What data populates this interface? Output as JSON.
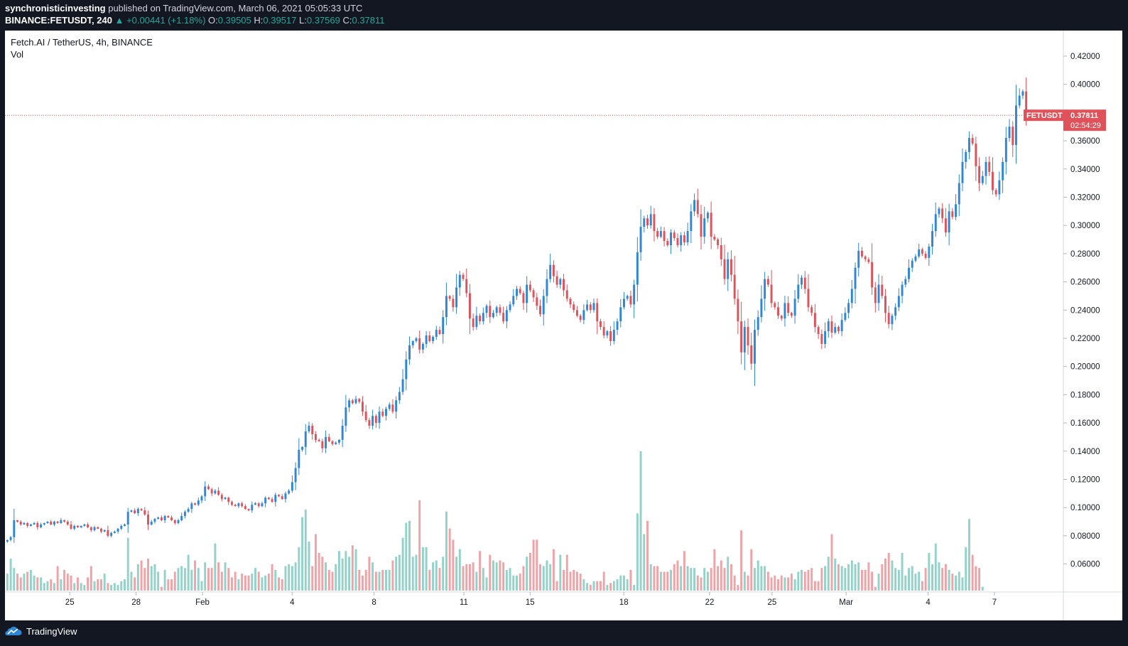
{
  "header": {
    "publisher": "synchronisticinvesting",
    "published_text": "published on TradingView.com, March 06, 2021 05:05:33 UTC",
    "symbol_full": "BINANCE:FETUSDT, 240",
    "change_arrow": "▲",
    "change": "+0.00441 (+1.18%)",
    "open_label": "O:",
    "open": "0.39505",
    "high_label": "H:",
    "high": "0.39517",
    "low_label": "L:",
    "low": "0.37569",
    "close_label": "C:",
    "close": "0.37811"
  },
  "legend": {
    "symbol": "Fetch.AI / TetherUS, 4h, BINANCE",
    "volume": "Vol"
  },
  "footer": {
    "brand": "TradingView"
  },
  "price_tag": {
    "ticker": "FETUSDT",
    "price": "0.37811",
    "countdown": "02:54:29"
  },
  "colors": {
    "up": "#2f86d6",
    "down": "#e0525a",
    "volume_up": "#93d2c9",
    "volume_down": "#f0a3a7",
    "price_line": "#e0525a",
    "background": "#131722"
  },
  "chart_data": {
    "type": "candlestick",
    "timeframe": "4h",
    "y_axis_ticks": [
      "0.42000",
      "0.40000",
      "0.36000",
      "0.34000",
      "0.32000",
      "0.30000",
      "0.28000",
      "0.26000",
      "0.24000",
      "0.22000",
      "0.20000",
      "0.18000",
      "0.16000",
      "0.14000",
      "0.12000",
      "0.10000",
      "0.08000",
      "0.06000"
    ],
    "ylim": [
      0.045,
      0.43
    ],
    "x_axis_ticks": [
      "25",
      "28",
      "Feb",
      "4",
      "8",
      "11",
      "15",
      "18",
      "22",
      "25",
      "Mar",
      "4",
      "7"
    ],
    "last_price": 0.37811,
    "series": [
      {
        "name": "close",
        "values": [
          0.077,
          0.079,
          0.091,
          0.09,
          0.088,
          0.089,
          0.087,
          0.088,
          0.089,
          0.086,
          0.088,
          0.089,
          0.09,
          0.088,
          0.09,
          0.089,
          0.091,
          0.09,
          0.088,
          0.085,
          0.087,
          0.086,
          0.087,
          0.088,
          0.086,
          0.084,
          0.086,
          0.085,
          0.083,
          0.084,
          0.08,
          0.082,
          0.083,
          0.085,
          0.087,
          0.088,
          0.097,
          0.098,
          0.096,
          0.099,
          0.098,
          0.095,
          0.088,
          0.09,
          0.092,
          0.093,
          0.091,
          0.094,
          0.093,
          0.091,
          0.089,
          0.091,
          0.094,
          0.097,
          0.099,
          0.103,
          0.102,
          0.105,
          0.108,
          0.115,
          0.113,
          0.11,
          0.112,
          0.109,
          0.106,
          0.107,
          0.104,
          0.102,
          0.101,
          0.103,
          0.101,
          0.099,
          0.098,
          0.102,
          0.103,
          0.101,
          0.103,
          0.107,
          0.106,
          0.104,
          0.109,
          0.108,
          0.106,
          0.11,
          0.112,
          0.118,
          0.128,
          0.141,
          0.143,
          0.154,
          0.158,
          0.152,
          0.148,
          0.147,
          0.142,
          0.15,
          0.147,
          0.145,
          0.146,
          0.148,
          0.158,
          0.171,
          0.176,
          0.174,
          0.177,
          0.175,
          0.168,
          0.162,
          0.158,
          0.165,
          0.16,
          0.168,
          0.165,
          0.17,
          0.173,
          0.168,
          0.176,
          0.182,
          0.191,
          0.205,
          0.215,
          0.218,
          0.22,
          0.212,
          0.216,
          0.222,
          0.218,
          0.221,
          0.226,
          0.223,
          0.235,
          0.25,
          0.248,
          0.242,
          0.256,
          0.265,
          0.262,
          0.252,
          0.234,
          0.228,
          0.236,
          0.232,
          0.238,
          0.243,
          0.235,
          0.238,
          0.242,
          0.238,
          0.232,
          0.24,
          0.244,
          0.25,
          0.255,
          0.252,
          0.245,
          0.258,
          0.254,
          0.249,
          0.243,
          0.237,
          0.25,
          0.262,
          0.272,
          0.264,
          0.258,
          0.262,
          0.254,
          0.248,
          0.244,
          0.24,
          0.236,
          0.233,
          0.24,
          0.244,
          0.24,
          0.245,
          0.232,
          0.228,
          0.222,
          0.225,
          0.218,
          0.226,
          0.232,
          0.242,
          0.248,
          0.25,
          0.244,
          0.258,
          0.281,
          0.299,
          0.305,
          0.3,
          0.308,
          0.296,
          0.292,
          0.296,
          0.289,
          0.286,
          0.295,
          0.291,
          0.286,
          0.293,
          0.288,
          0.296,
          0.31,
          0.318,
          0.308,
          0.292,
          0.305,
          0.309,
          0.292,
          0.29,
          0.286,
          0.276,
          0.262,
          0.276,
          0.265,
          0.248,
          0.232,
          0.21,
          0.228,
          0.215,
          0.202,
          0.226,
          0.235,
          0.248,
          0.262,
          0.258,
          0.245,
          0.242,
          0.236,
          0.234,
          0.245,
          0.238,
          0.236,
          0.248,
          0.258,
          0.263,
          0.255,
          0.242,
          0.238,
          0.228,
          0.223,
          0.216,
          0.225,
          0.232,
          0.224,
          0.228,
          0.225,
          0.233,
          0.238,
          0.245,
          0.255,
          0.27,
          0.282,
          0.278,
          0.276,
          0.274,
          0.256,
          0.245,
          0.258,
          0.25,
          0.238,
          0.23,
          0.236,
          0.242,
          0.25,
          0.258,
          0.262,
          0.27,
          0.275,
          0.278,
          0.283,
          0.28,
          0.277,
          0.285,
          0.296,
          0.308,
          0.312,
          0.305,
          0.295,
          0.31,
          0.306,
          0.315,
          0.33,
          0.345,
          0.352,
          0.362,
          0.358,
          0.342,
          0.33,
          0.335,
          0.345,
          0.338,
          0.325,
          0.322,
          0.332,
          0.345,
          0.362,
          0.37,
          0.357,
          0.385,
          0.392,
          0.395,
          0.378
        ]
      },
      {
        "name": "volume",
        "values": [
          9,
          17,
          12,
          9,
          7,
          9,
          10,
          11,
          8,
          7,
          7,
          4,
          5,
          6,
          4,
          13,
          6,
          11,
          9,
          8,
          4,
          7,
          4,
          3,
          7,
          13,
          5,
          6,
          6,
          9,
          4,
          3,
          4,
          3,
          5,
          6,
          28,
          10,
          7,
          14,
          16,
          12,
          17,
          13,
          14,
          10,
          2,
          11,
          6,
          6,
          10,
          12,
          13,
          12,
          19,
          11,
          16,
          12,
          5,
          15,
          12,
          12,
          25,
          15,
          10,
          15,
          12,
          7,
          10,
          6,
          9,
          8,
          8,
          9,
          12,
          10,
          7,
          8,
          9,
          14,
          11,
          7,
          6,
          13,
          14,
          13,
          15,
          23,
          39,
          43,
          26,
          13,
          30,
          20,
          18,
          15,
          11,
          10,
          14,
          21,
          17,
          21,
          18,
          24,
          22,
          11,
          8,
          11,
          18,
          15,
          10,
          10,
          11,
          11,
          11,
          16,
          18,
          19,
          28,
          36,
          37,
          18,
          19,
          48,
          23,
          23,
          11,
          15,
          16,
          12,
          18,
          42,
          33,
          27,
          18,
          22,
          13,
          14,
          14,
          15,
          10,
          21,
          12,
          7,
          19,
          16,
          15,
          16,
          15,
          11,
          12,
          8,
          8,
          9,
          13,
          18,
          20,
          27,
          27,
          14,
          13,
          16,
          14,
          22,
          5,
          19,
          11,
          19,
          10,
          11,
          10,
          9,
          6,
          4,
          3,
          5,
          5,
          5,
          10,
          3,
          4,
          5,
          6,
          8,
          8,
          6,
          11,
          3,
          41,
          74,
          30,
          37,
          14,
          13,
          13,
          10,
          10,
          10,
          11,
          14,
          16,
          13,
          21,
          13,
          12,
          12,
          8,
          7,
          12,
          10,
          12,
          22,
          13,
          16,
          12,
          18,
          14,
          8,
          3,
          32,
          10,
          8,
          22,
          12,
          16,
          13,
          13,
          10,
          7,
          8,
          6,
          8,
          7,
          7,
          9,
          6,
          10,
          11,
          10,
          11,
          12,
          5,
          5,
          12,
          13,
          18,
          30,
          17,
          14,
          13,
          12,
          14,
          16,
          14,
          15,
          11,
          11,
          15,
          10,
          2,
          9,
          14,
          17,
          20,
          16,
          12,
          11,
          20,
          8,
          12,
          13,
          9,
          10,
          5,
          12,
          20,
          14,
          25,
          15,
          12,
          14,
          11,
          9,
          8,
          10,
          7,
          23,
          38,
          19,
          13,
          12,
          2
        ]
      }
    ]
  }
}
